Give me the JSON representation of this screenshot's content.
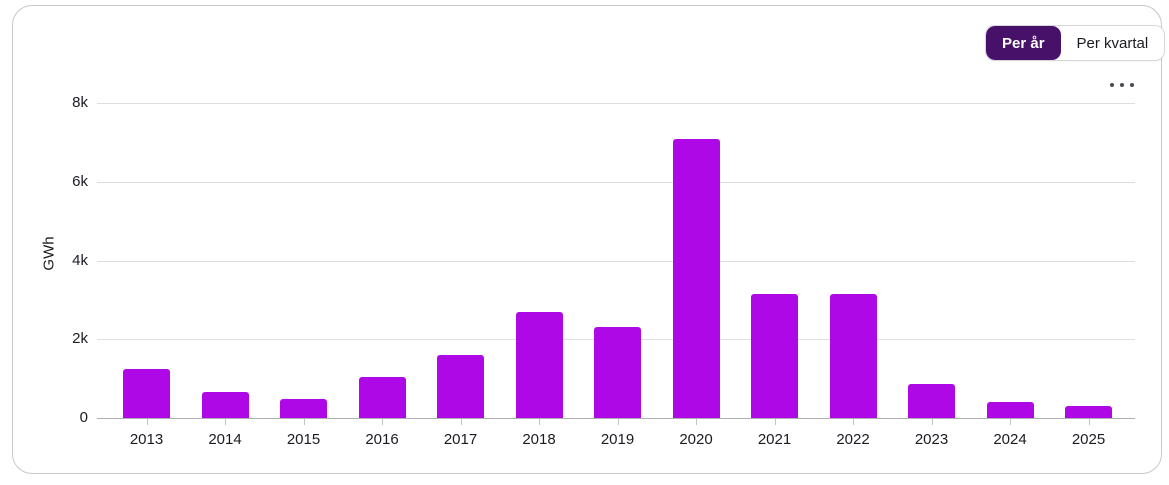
{
  "toggle": {
    "options": [
      {
        "label": "Per år",
        "selected": true
      },
      {
        "label": "Per kvartal",
        "selected": false
      }
    ]
  },
  "menu": {
    "icon": "ellipsis-icon"
  },
  "colors": {
    "bar": "#AF08E6",
    "toggle_selected_bg": "#471069",
    "toggle_selected_text": "#FFFFFF",
    "grid": "#DEDEDF",
    "axis": "#AEAEB3",
    "text": "#1B1B22",
    "card_border": "#C7C7CC"
  },
  "chart_data": {
    "type": "bar",
    "title": "",
    "categories": [
      "2013",
      "2014",
      "2015",
      "2016",
      "2017",
      "2018",
      "2019",
      "2020",
      "2021",
      "2022",
      "2023",
      "2024",
      "2025"
    ],
    "values": [
      1250,
      650,
      490,
      1030,
      1600,
      2700,
      2320,
      7080,
      3160,
      3160,
      870,
      410,
      300
    ],
    "xlabel": "",
    "ylabel": "GWh",
    "ylim": [
      0,
      8000
    ],
    "yticks": [
      {
        "value": 0,
        "label": "0"
      },
      {
        "value": 2000,
        "label": "2k"
      },
      {
        "value": 4000,
        "label": "4k"
      },
      {
        "value": 6000,
        "label": "6k"
      },
      {
        "value": 8000,
        "label": "8k"
      }
    ],
    "grid": true,
    "legend": "none",
    "bar_color": "#AF08E6"
  }
}
